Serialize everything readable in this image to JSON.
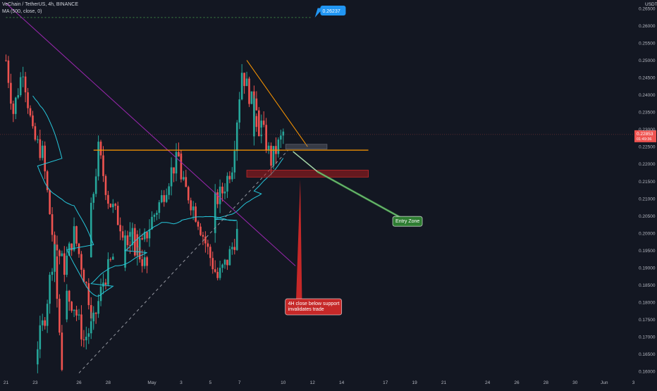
{
  "header": {
    "symbol_line": "VeChain / TetherUS, 4h, BINANCE",
    "ma_line": "MA (500, close, 0)"
  },
  "price_axis": {
    "currency": "USDT",
    "ticks": [
      "0.26500",
      "0.26000",
      "0.25500",
      "0.25000",
      "0.24500",
      "0.24000",
      "0.23500",
      "0.23000",
      "0.22500",
      "0.22000",
      "0.21500",
      "0.21000",
      "0.20500",
      "0.20000",
      "0.19500",
      "0.19000",
      "0.18500",
      "0.18000",
      "0.17500",
      "0.17000",
      "0.16500",
      "0.16000"
    ],
    "current_price_label": "0.22853",
    "countdown_label": "01:49:36"
  },
  "time_axis": {
    "ticks": [
      "21",
      "23",
      "26",
      "28",
      "May",
      "3",
      "5",
      "7",
      "10",
      "12",
      "14",
      "17",
      "19",
      "21",
      "24",
      "26",
      "28",
      "30",
      "Jun",
      "3"
    ]
  },
  "annotations": {
    "target_label": "0.26237",
    "entry_zone_label": "Entry Zone",
    "invalidation_line1": "4H close below support",
    "invalidation_line2": "invalidates trade"
  },
  "colors": {
    "background": "#131722",
    "up_candle": "#26a69a",
    "down_candle": "#ef5350",
    "ma_line": "#26c6da",
    "trendline_purple": "#9c27b0",
    "support_line": "#ff9800",
    "target_badge": "#2196f3",
    "entry_zone_badge": "#2e7d32",
    "invalidation_badge": "#c62828",
    "price_label": "#ef5350"
  },
  "chart_data": {
    "type": "candlestick",
    "title": "VeChain / TetherUS, 4h, BINANCE",
    "y_unit": "USDT",
    "ylim": [
      0.1595,
      0.2675
    ],
    "last_price": 0.22853,
    "target_price": 0.26237,
    "support_level": 0.224,
    "grid": false,
    "price_segments": [
      {
        "from": "Apr 21 00:00",
        "open": 0.25,
        "points": [
          [
            0.255,
            0.235
          ],
          [
            0.235,
            0.248
          ],
          [
            0.248,
            0.228
          ],
          [
            0.228,
            0.223
          ],
          [
            0.223,
            0.2
          ],
          [
            0.2,
            0.162
          ]
        ]
      },
      {
        "from": "Apr 23 04:00",
        "open": 0.162,
        "points": [
          [
            0.165,
            0.176
          ],
          [
            0.176,
            0.197
          ],
          [
            0.197,
            0.19
          ],
          [
            0.19,
            0.2
          ],
          [
            0.2,
            0.188
          ],
          [
            0.188,
            0.175
          ]
        ]
      },
      {
        "from": "Apr 25 04:00",
        "open": 0.175,
        "points": [
          [
            0.183,
            0.179
          ],
          [
            0.179,
            0.169
          ],
          [
            0.169,
            0.174
          ],
          [
            0.174,
            0.186
          ],
          [
            0.186,
            0.193
          ]
        ]
      },
      {
        "from": "Apr 26 20:00",
        "open": 0.193,
        "points": [
          [
            0.2,
            0.224
          ],
          [
            0.224,
            0.21
          ],
          [
            0.21,
            0.204
          ],
          [
            0.204,
            0.199
          ],
          [
            0.199,
            0.195
          ],
          [
            0.195,
            0.19
          ]
        ]
      },
      {
        "from": "Apr 29 04:00",
        "open": 0.19,
        "points": [
          [
            0.195,
            0.2
          ],
          [
            0.2,
            0.196
          ],
          [
            0.196,
            0.204
          ],
          [
            0.204,
            0.21
          ],
          [
            0.21,
            0.218
          ],
          [
            0.218,
            0.223
          ]
        ]
      },
      {
        "from": "May 3 00:00",
        "open": 0.223,
        "points": [
          [
            0.216,
            0.211
          ],
          [
            0.211,
            0.204
          ],
          [
            0.204,
            0.195
          ],
          [
            0.195,
            0.187
          ],
          [
            0.187,
            0.192
          ],
          [
            0.192,
            0.2
          ]
        ]
      },
      {
        "from": "May 5 08:00",
        "open": 0.2,
        "points": [
          [
            0.208,
            0.212
          ],
          [
            0.212,
            0.22
          ],
          [
            0.22,
            0.247
          ],
          [
            0.247,
            0.238
          ],
          [
            0.238,
            0.228
          ]
        ]
      },
      {
        "from": "May 8 00:00",
        "open": 0.228,
        "points": [
          [
            0.238,
            0.231
          ],
          [
            0.231,
            0.221
          ],
          [
            0.221,
            0.227
          ],
          [
            0.227,
            0.235
          ],
          [
            0.235,
            0.2285
          ]
        ]
      }
    ]
  }
}
